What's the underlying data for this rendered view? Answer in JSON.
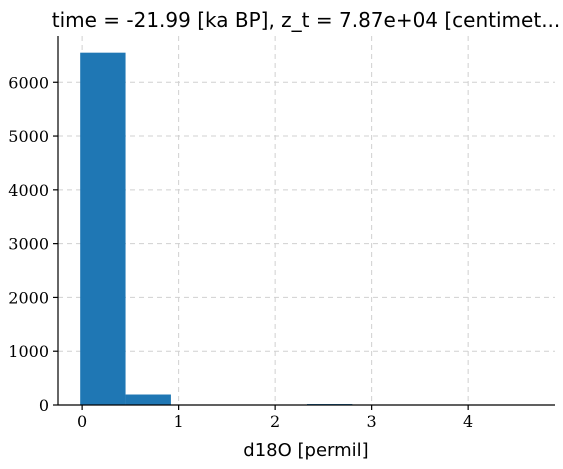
{
  "chart_data": {
    "type": "bar",
    "title": "time = -21.99 [ka BP], z_t = 7.87e+04 [centimet...",
    "xlabel": "d18O [permil]",
    "ylabel": "",
    "bin_edges": [
      -0.02,
      0.45,
      0.92,
      1.39,
      1.86,
      2.33,
      2.8,
      3.27,
      3.74,
      4.21,
      4.68
    ],
    "values": [
      6550,
      195,
      3,
      2,
      2,
      18,
      1,
      1,
      1,
      1
    ],
    "xlim": [
      -0.25,
      4.9
    ],
    "ylim": [
      0,
      6860
    ],
    "xticks": [
      0,
      1,
      2,
      3,
      4
    ],
    "xtick_labels": [
      "0",
      "1",
      "2",
      "3",
      "4"
    ],
    "yticks": [
      0,
      1000,
      2000,
      3000,
      4000,
      5000,
      6000
    ],
    "ytick_labels": [
      "0",
      "1000",
      "2000",
      "3000",
      "4000",
      "5000",
      "6000"
    ],
    "grid": true,
    "bar_color": "#1f77b4",
    "grid_color": "#d0d0d0"
  }
}
